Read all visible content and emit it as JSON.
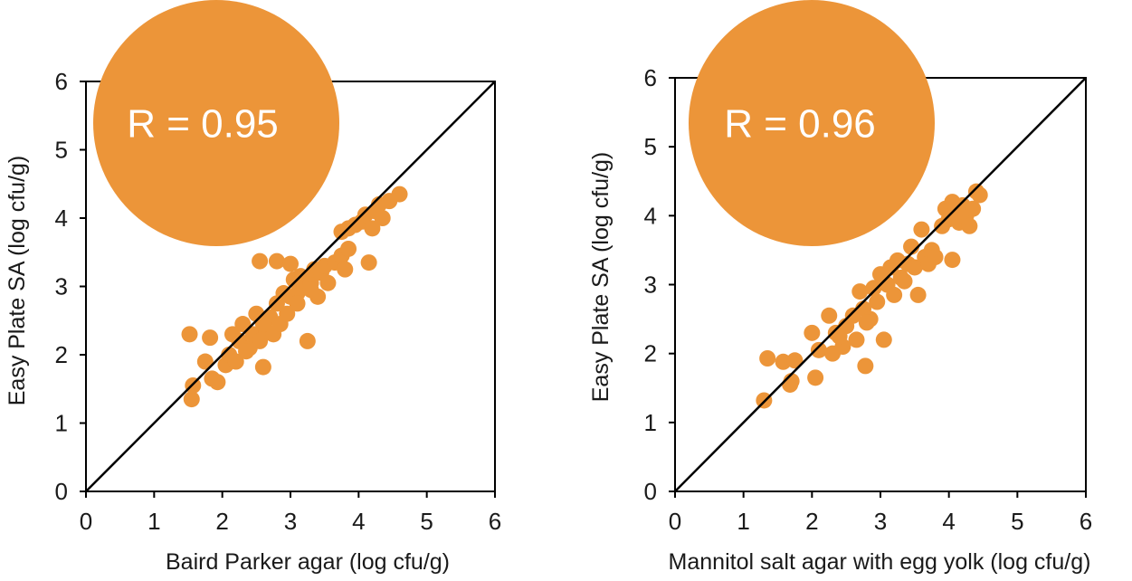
{
  "colors": {
    "marker": "#EC9539",
    "badge": "#EC9539",
    "line": "#000000",
    "frame": "#000000"
  },
  "chart_data": [
    {
      "type": "scatter",
      "xlabel": "Baird Parker agar (log cfu/g)",
      "ylabel": "Easy Plate SA (log cfu/g)",
      "xlim": [
        0,
        6
      ],
      "ylim": [
        0,
        6
      ],
      "x_ticks": [
        "0",
        "1",
        "2",
        "3",
        "4",
        "5",
        "6"
      ],
      "y_ticks": [
        "0",
        "1",
        "2",
        "3",
        "4",
        "5",
        "6"
      ],
      "annotation": "R = 0.95",
      "reference_line": [
        [
          0,
          0
        ],
        [
          6,
          6
        ]
      ],
      "points": [
        [
          1.55,
          1.35
        ],
        [
          1.57,
          1.55
        ],
        [
          1.52,
          2.3
        ],
        [
          1.75,
          1.9
        ],
        [
          1.85,
          1.65
        ],
        [
          1.93,
          1.6
        ],
        [
          1.82,
          2.25
        ],
        [
          2.05,
          1.85
        ],
        [
          2.1,
          2.0
        ],
        [
          2.15,
          2.3
        ],
        [
          2.2,
          1.9
        ],
        [
          2.25,
          2.2
        ],
        [
          2.3,
          2.45
        ],
        [
          2.4,
          2.1
        ],
        [
          2.45,
          2.3
        ],
        [
          2.5,
          2.6
        ],
        [
          2.55,
          2.2
        ],
        [
          2.6,
          1.82
        ],
        [
          2.65,
          2.35
        ],
        [
          2.7,
          2.55
        ],
        [
          2.75,
          2.3
        ],
        [
          2.8,
          2.75
        ],
        [
          2.85,
          2.45
        ],
        [
          2.9,
          2.9
        ],
        [
          2.95,
          2.6
        ],
        [
          3.0,
          2.85
        ],
        [
          3.05,
          3.1
        ],
        [
          3.1,
          2.9
        ],
        [
          3.15,
          3.15
        ],
        [
          3.2,
          3.0
        ],
        [
          3.25,
          2.2
        ],
        [
          3.3,
          3.05
        ],
        [
          3.35,
          3.25
        ],
        [
          3.4,
          2.85
        ],
        [
          3.45,
          3.2
        ],
        [
          3.5,
          3.3
        ],
        [
          3.55,
          3.05
        ],
        [
          3.65,
          3.35
        ],
        [
          3.75,
          3.45
        ],
        [
          3.8,
          3.25
        ],
        [
          3.85,
          3.55
        ],
        [
          3.75,
          3.8
        ],
        [
          3.85,
          3.85
        ],
        [
          3.95,
          3.9
        ],
        [
          4.05,
          3.95
        ],
        [
          4.1,
          4.05
        ],
        [
          4.15,
          3.35
        ],
        [
          4.2,
          3.85
        ],
        [
          4.25,
          4.1
        ],
        [
          4.3,
          4.2
        ],
        [
          4.35,
          4.0
        ],
        [
          4.45,
          4.25
        ],
        [
          4.6,
          4.35
        ],
        [
          2.55,
          3.37
        ],
        [
          2.8,
          3.37
        ],
        [
          3.0,
          3.33
        ],
        [
          2.35,
          2.05
        ],
        [
          2.6,
          2.45
        ],
        [
          3.1,
          2.75
        ],
        [
          3.3,
          2.95
        ]
      ]
    },
    {
      "type": "scatter",
      "xlabel": "Mannitol salt agar with egg yolk (log cfu/g)",
      "ylabel": "Easy Plate SA (log cfu/g)",
      "xlim": [
        0,
        6
      ],
      "ylim": [
        0,
        6
      ],
      "x_ticks": [
        "0",
        "1",
        "2",
        "3",
        "4",
        "5",
        "6"
      ],
      "y_ticks": [
        "0",
        "1",
        "2",
        "3",
        "4",
        "5",
        "6"
      ],
      "annotation": "R = 0.96",
      "reference_line": [
        [
          0,
          0
        ],
        [
          6,
          6
        ]
      ],
      "points": [
        [
          1.3,
          1.32
        ],
        [
          1.35,
          1.93
        ],
        [
          1.58,
          1.88
        ],
        [
          1.68,
          1.55
        ],
        [
          1.75,
          1.9
        ],
        [
          1.7,
          1.6
        ],
        [
          2.05,
          1.65
        ],
        [
          2.0,
          2.3
        ],
        [
          2.1,
          2.05
        ],
        [
          2.25,
          2.55
        ],
        [
          2.3,
          2.0
        ],
        [
          2.35,
          2.3
        ],
        [
          2.45,
          2.1
        ],
        [
          2.5,
          2.4
        ],
        [
          2.6,
          2.55
        ],
        [
          2.65,
          2.2
        ],
        [
          2.7,
          2.9
        ],
        [
          2.75,
          2.65
        ],
        [
          2.78,
          1.82
        ],
        [
          2.85,
          2.5
        ],
        [
          2.9,
          2.95
        ],
        [
          2.95,
          2.75
        ],
        [
          3.0,
          3.15
        ],
        [
          3.05,
          2.2
        ],
        [
          3.1,
          3.0
        ],
        [
          3.15,
          3.25
        ],
        [
          3.2,
          2.85
        ],
        [
          3.25,
          3.35
        ],
        [
          3.3,
          3.1
        ],
        [
          3.4,
          3.3
        ],
        [
          3.45,
          3.55
        ],
        [
          3.5,
          3.25
        ],
        [
          3.55,
          2.85
        ],
        [
          3.6,
          3.8
        ],
        [
          3.65,
          3.4
        ],
        [
          3.7,
          3.3
        ],
        [
          3.75,
          3.5
        ],
        [
          3.8,
          3.4
        ],
        [
          3.9,
          3.85
        ],
        [
          4.0,
          3.95
        ],
        [
          4.05,
          3.36
        ],
        [
          4.1,
          4.05
        ],
        [
          4.15,
          3.9
        ],
        [
          4.2,
          4.15
        ],
        [
          4.25,
          4.0
        ],
        [
          4.3,
          3.85
        ],
        [
          4.35,
          4.1
        ],
        [
          4.45,
          4.3
        ],
        [
          4.4,
          4.35
        ],
        [
          3.95,
          4.1
        ],
        [
          2.4,
          2.25
        ],
        [
          2.8,
          2.45
        ],
        [
          3.35,
          3.05
        ],
        [
          4.05,
          4.2
        ]
      ]
    }
  ]
}
